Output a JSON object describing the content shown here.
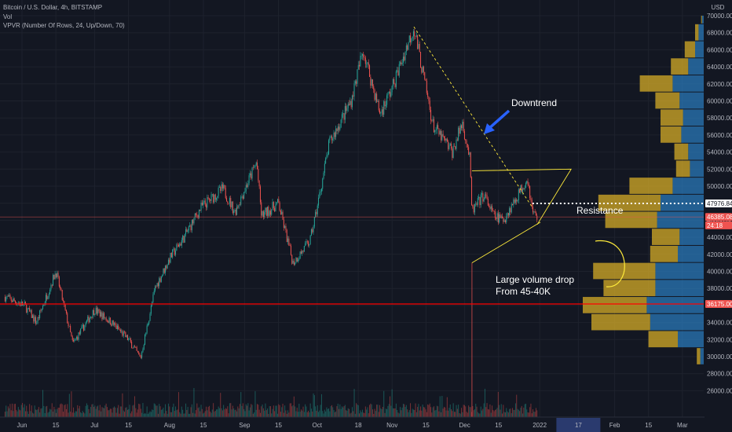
{
  "header": {
    "symbol_line": "Bitcoin / U.S. Dollar, 4h, BITSTAMP",
    "vol_label": "Vol",
    "vpvr_label": "VPVR (Number Of Rows, 24, Up/Down, 70)"
  },
  "colors": {
    "background": "#131722",
    "grid": "#1e222d",
    "up": "#26a69a",
    "down": "#ef5350",
    "vp_up": "#2a78b8",
    "vp_down": "#c9a227",
    "annotation": "#ffeb3b",
    "support_line": "#ff0000",
    "arrow": "#2962ff"
  },
  "chart_data": {
    "type": "candlestick",
    "currency_label": "USD",
    "y_ticks": [
      70000,
      68000,
      66000,
      64000,
      62000,
      60000,
      58000,
      56000,
      54000,
      52000,
      50000,
      48000,
      46000,
      44000,
      42000,
      40000,
      38000,
      36000,
      34000,
      32000,
      30000,
      28000,
      26000
    ],
    "y_tick_labels": [
      "70000.00",
      "68000.00",
      "66000.00",
      "64000.00",
      "62000.00",
      "60000.00",
      "58000.00",
      "56000.00",
      "54000.00",
      "52000.00",
      "50000.00",
      "48000.00",
      "46000.00",
      "44000.00",
      "42000.00",
      "40000.00",
      "38000.00",
      "36000.00",
      "34000.00",
      "32000.00",
      "30000.00",
      "28000.00",
      "26000.00"
    ],
    "x_ticks": [
      {
        "label": "Jun",
        "date": "2021-06-01",
        "highlight": false
      },
      {
        "label": "15",
        "date": "2021-06-15",
        "highlight": false
      },
      {
        "label": "Jul",
        "date": "2021-07-01",
        "highlight": false
      },
      {
        "label": "15",
        "date": "2021-07-15",
        "highlight": false
      },
      {
        "label": "Aug",
        "date": "2021-08-01",
        "highlight": false
      },
      {
        "label": "15",
        "date": "2021-08-15",
        "highlight": false
      },
      {
        "label": "Sep",
        "date": "2021-09-01",
        "highlight": false
      },
      {
        "label": "15",
        "date": "2021-09-15",
        "highlight": false
      },
      {
        "label": "Oct",
        "date": "2021-10-01",
        "highlight": false
      },
      {
        "label": "18",
        "date": "2021-10-18",
        "highlight": false
      },
      {
        "label": "Nov",
        "date": "2021-11-01",
        "highlight": false
      },
      {
        "label": "15",
        "date": "2021-11-15",
        "highlight": false
      },
      {
        "label": "Dec",
        "date": "2021-12-01",
        "highlight": false
      },
      {
        "label": "15",
        "date": "2021-12-15",
        "highlight": false
      },
      {
        "label": "2022",
        "date": "2022-01-01",
        "highlight": false
      },
      {
        "label": "17",
        "date": "2022-01-17",
        "highlight": true
      },
      {
        "label": "Feb",
        "date": "2022-02-01",
        "highlight": false
      },
      {
        "label": "15",
        "date": "2022-02-15",
        "highlight": false
      },
      {
        "label": "Mar",
        "date": "2022-03-01",
        "highlight": false
      }
    ],
    "price_path": [
      {
        "date": "2021-05-25",
        "price": 37000
      },
      {
        "date": "2021-06-02",
        "price": 36000
      },
      {
        "date": "2021-06-07",
        "price": 34000
      },
      {
        "date": "2021-06-15",
        "price": 40000
      },
      {
        "date": "2021-06-22",
        "price": 31500
      },
      {
        "date": "2021-07-01",
        "price": 35500
      },
      {
        "date": "2021-07-08",
        "price": 34000
      },
      {
        "date": "2021-07-15",
        "price": 32000
      },
      {
        "date": "2021-07-20",
        "price": 29800
      },
      {
        "date": "2021-07-26",
        "price": 38000
      },
      {
        "date": "2021-08-01",
        "price": 41500
      },
      {
        "date": "2021-08-07",
        "price": 44000
      },
      {
        "date": "2021-08-14",
        "price": 47500
      },
      {
        "date": "2021-08-23",
        "price": 49700
      },
      {
        "date": "2021-08-28",
        "price": 47000
      },
      {
        "date": "2021-09-06",
        "price": 52800
      },
      {
        "date": "2021-09-08",
        "price": 46500
      },
      {
        "date": "2021-09-15",
        "price": 48000
      },
      {
        "date": "2021-09-21",
        "price": 41000
      },
      {
        "date": "2021-09-28",
        "price": 43500
      },
      {
        "date": "2021-10-01",
        "price": 47500
      },
      {
        "date": "2021-10-06",
        "price": 55000
      },
      {
        "date": "2021-10-15",
        "price": 60000
      },
      {
        "date": "2021-10-20",
        "price": 66000
      },
      {
        "date": "2021-10-27",
        "price": 58500
      },
      {
        "date": "2021-11-01",
        "price": 61500
      },
      {
        "date": "2021-11-10",
        "price": 68700
      },
      {
        "date": "2021-11-18",
        "price": 57000
      },
      {
        "date": "2021-11-26",
        "price": 54000
      },
      {
        "date": "2021-11-30",
        "price": 57500
      },
      {
        "date": "2021-12-03",
        "price": 53500
      },
      {
        "date": "2021-12-04",
        "price": 47000
      },
      {
        "date": "2021-12-09",
        "price": 49000
      },
      {
        "date": "2021-12-13",
        "price": 46500
      },
      {
        "date": "2021-12-17",
        "price": 46000
      },
      {
        "date": "2021-12-23",
        "price": 49000
      },
      {
        "date": "2021-12-27",
        "price": 51000
      },
      {
        "date": "2021-12-29",
        "price": 47000
      },
      {
        "date": "2021-12-31",
        "price": 46385
      }
    ],
    "volume_profile": [
      {
        "price_low": 69000,
        "price_high": 70000,
        "up": 0.01,
        "down": 0.005
      },
      {
        "price_low": 67000,
        "price_high": 69000,
        "up": 0.03,
        "down": 0.02
      },
      {
        "price_low": 65000,
        "price_high": 67000,
        "up": 0.05,
        "down": 0.06
      },
      {
        "price_low": 63000,
        "price_high": 65000,
        "up": 0.09,
        "down": 0.1
      },
      {
        "price_low": 61000,
        "price_high": 63000,
        "up": 0.18,
        "down": 0.19
      },
      {
        "price_low": 59000,
        "price_high": 61000,
        "up": 0.14,
        "down": 0.14
      },
      {
        "price_low": 57000,
        "price_high": 59000,
        "up": 0.12,
        "down": 0.13
      },
      {
        "price_low": 55000,
        "price_high": 57000,
        "up": 0.13,
        "down": 0.12
      },
      {
        "price_low": 53000,
        "price_high": 55000,
        "up": 0.09,
        "down": 0.08
      },
      {
        "price_low": 51000,
        "price_high": 53000,
        "up": 0.08,
        "down": 0.08
      },
      {
        "price_low": 49000,
        "price_high": 51000,
        "up": 0.18,
        "down": 0.25
      },
      {
        "price_low": 47000,
        "price_high": 49000,
        "up": 0.25,
        "down": 0.36
      },
      {
        "price_low": 45000,
        "price_high": 47000,
        "up": 0.27,
        "down": 0.3
      },
      {
        "price_low": 43000,
        "price_high": 45000,
        "up": 0.14,
        "down": 0.16
      },
      {
        "price_low": 41000,
        "price_high": 43000,
        "up": 0.15,
        "down": 0.16
      },
      {
        "price_low": 39000,
        "price_high": 41000,
        "up": 0.28,
        "down": 0.36
      },
      {
        "price_low": 37000,
        "price_high": 39000,
        "up": 0.28,
        "down": 0.3
      },
      {
        "price_low": 35000,
        "price_high": 37000,
        "up": 0.33,
        "down": 0.37
      },
      {
        "price_low": 33000,
        "price_high": 35000,
        "up": 0.31,
        "down": 0.34
      },
      {
        "price_low": 31000,
        "price_high": 33000,
        "up": 0.15,
        "down": 0.17
      },
      {
        "price_low": 29000,
        "price_high": 31000,
        "up": 0.02,
        "down": 0.02
      }
    ],
    "price_labels": [
      {
        "text": "47976.84",
        "price": 47976.84,
        "style": "white"
      },
      {
        "text": "46385.08",
        "price": 46385.08,
        "style": "red"
      },
      {
        "text": "24:18",
        "price": 45400,
        "style": "red"
      },
      {
        "text": "36175.00",
        "price": 36175,
        "style": "red"
      }
    ],
    "support_line_price": 36175,
    "current_price": 46385.08,
    "resistance_line_price": 47976.84,
    "trendline": {
      "start": {
        "date": "2021-11-10",
        "price": 68700
      },
      "end": {
        "date": "2021-12-29",
        "price": 47500
      }
    },
    "triangle": {
      "top_left": {
        "date": "2021-12-04",
        "price": 51800
      },
      "top_right": {
        "date": "2022-01-14",
        "price": 52000
      },
      "apex": {
        "date": "2021-12-31",
        "price": 45500
      },
      "bottom_left": {
        "date": "2021-12-04",
        "price": 41000
      }
    },
    "annotations": {
      "downtrend": "Downtrend",
      "resistance": "Resistance",
      "volume_drop_line1": "Large volume drop",
      "volume_drop_line2": "From 45-40K"
    }
  }
}
